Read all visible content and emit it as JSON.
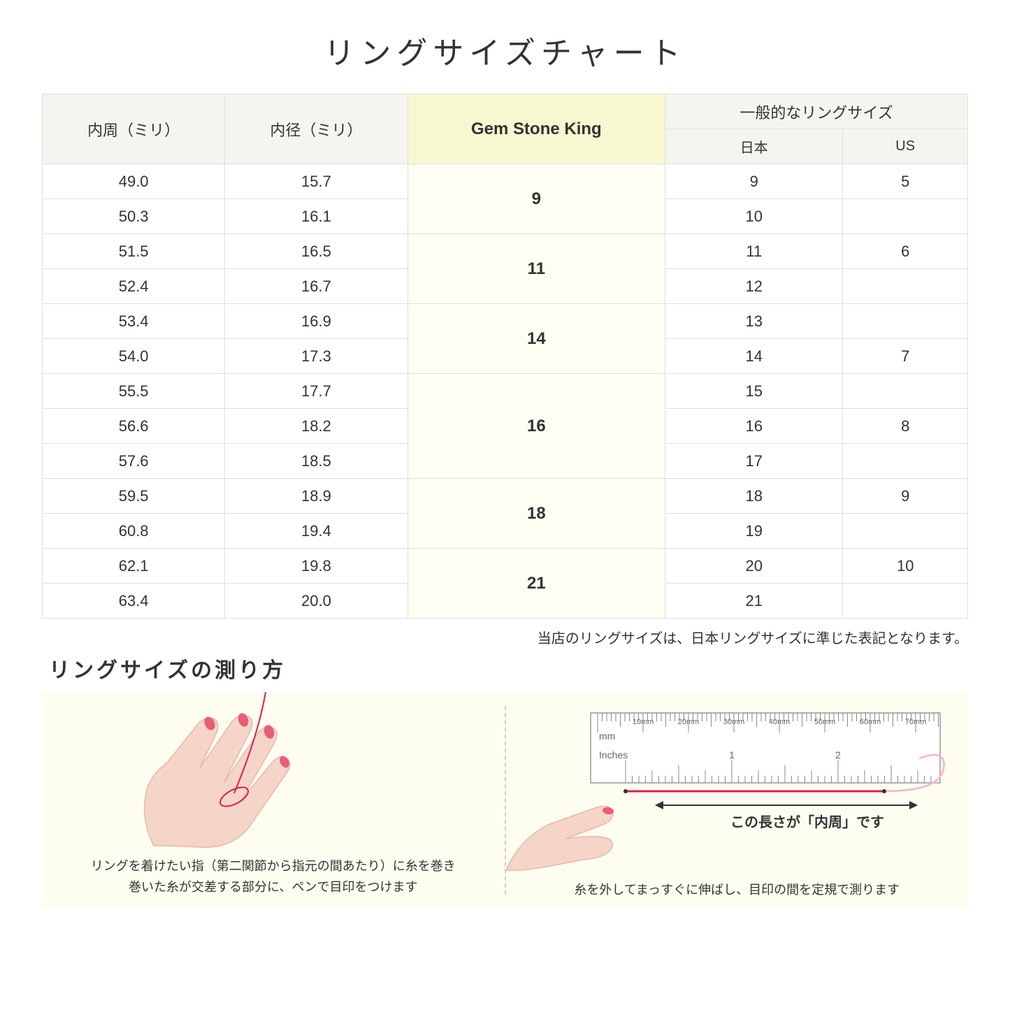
{
  "title": "リングサイズチャート",
  "headers": {
    "circumference": "内周（ミリ）",
    "diameter": "内径（ミリ）",
    "gsk": "Gem Stone King",
    "general": "一般的なリングサイズ",
    "japan": "日本",
    "us": "US"
  },
  "groups": [
    {
      "gsk": "9",
      "rows": [
        {
          "c": "49.0",
          "d": "15.7",
          "jp": "9",
          "us": "5"
        },
        {
          "c": "50.3",
          "d": "16.1",
          "jp": "10",
          "us": ""
        }
      ]
    },
    {
      "gsk": "11",
      "rows": [
        {
          "c": "51.5",
          "d": "16.5",
          "jp": "11",
          "us": "6"
        },
        {
          "c": "52.4",
          "d": "16.7",
          "jp": "12",
          "us": ""
        }
      ]
    },
    {
      "gsk": "14",
      "rows": [
        {
          "c": "53.4",
          "d": "16.9",
          "jp": "13",
          "us": ""
        },
        {
          "c": "54.0",
          "d": "17.3",
          "jp": "14",
          "us": "7"
        }
      ]
    },
    {
      "gsk": "16",
      "rows": [
        {
          "c": "55.5",
          "d": "17.7",
          "jp": "15",
          "us": ""
        },
        {
          "c": "56.6",
          "d": "18.2",
          "jp": "16",
          "us": "8"
        },
        {
          "c": "57.6",
          "d": "18.5",
          "jp": "17",
          "us": ""
        }
      ]
    },
    {
      "gsk": "18",
      "rows": [
        {
          "c": "59.5",
          "d": "18.9",
          "jp": "18",
          "us": "9"
        },
        {
          "c": "60.8",
          "d": "19.4",
          "jp": "19",
          "us": ""
        }
      ]
    },
    {
      "gsk": "21",
      "rows": [
        {
          "c": "62.1",
          "d": "19.8",
          "jp": "20",
          "us": "10"
        },
        {
          "c": "63.4",
          "d": "20.0",
          "jp": "21",
          "us": ""
        }
      ]
    }
  ],
  "note": "当店のリングサイズは、日本リングサイズに準じた表記となります。",
  "measure_title": "リングサイズの測り方",
  "left_caption": "リングを着けたい指（第二関節から指元の間あたり）に糸を巻き\n巻いた糸が交差する部分に、ペンで目印をつけます",
  "right_label": "この長さが「内周」です",
  "right_caption": "糸を外してまっすぐに伸ばし、目印の間を定規で測ります",
  "ruler": {
    "mm_label": "mm",
    "inches_label": "Inches",
    "mm_marks": [
      "10mm",
      "20mm",
      "30mm",
      "40mm",
      "50mm",
      "60mm",
      "70mm"
    ],
    "inch_marks": [
      "1",
      "2"
    ]
  },
  "colors": {
    "header_bg": "#f5f5f0",
    "gsk_header_bg": "#f8f8d0",
    "gsk_cell_bg": "#fefef2",
    "border": "#e0e0e0",
    "bottom_bg": "#fdfdf0",
    "skin": "#f5d5c8",
    "skin_dark": "#e8b8a8",
    "nail": "#e85d7a",
    "thread": "#d91e5b",
    "ruler_fill": "#ffffff",
    "ruler_stroke": "#999999"
  }
}
